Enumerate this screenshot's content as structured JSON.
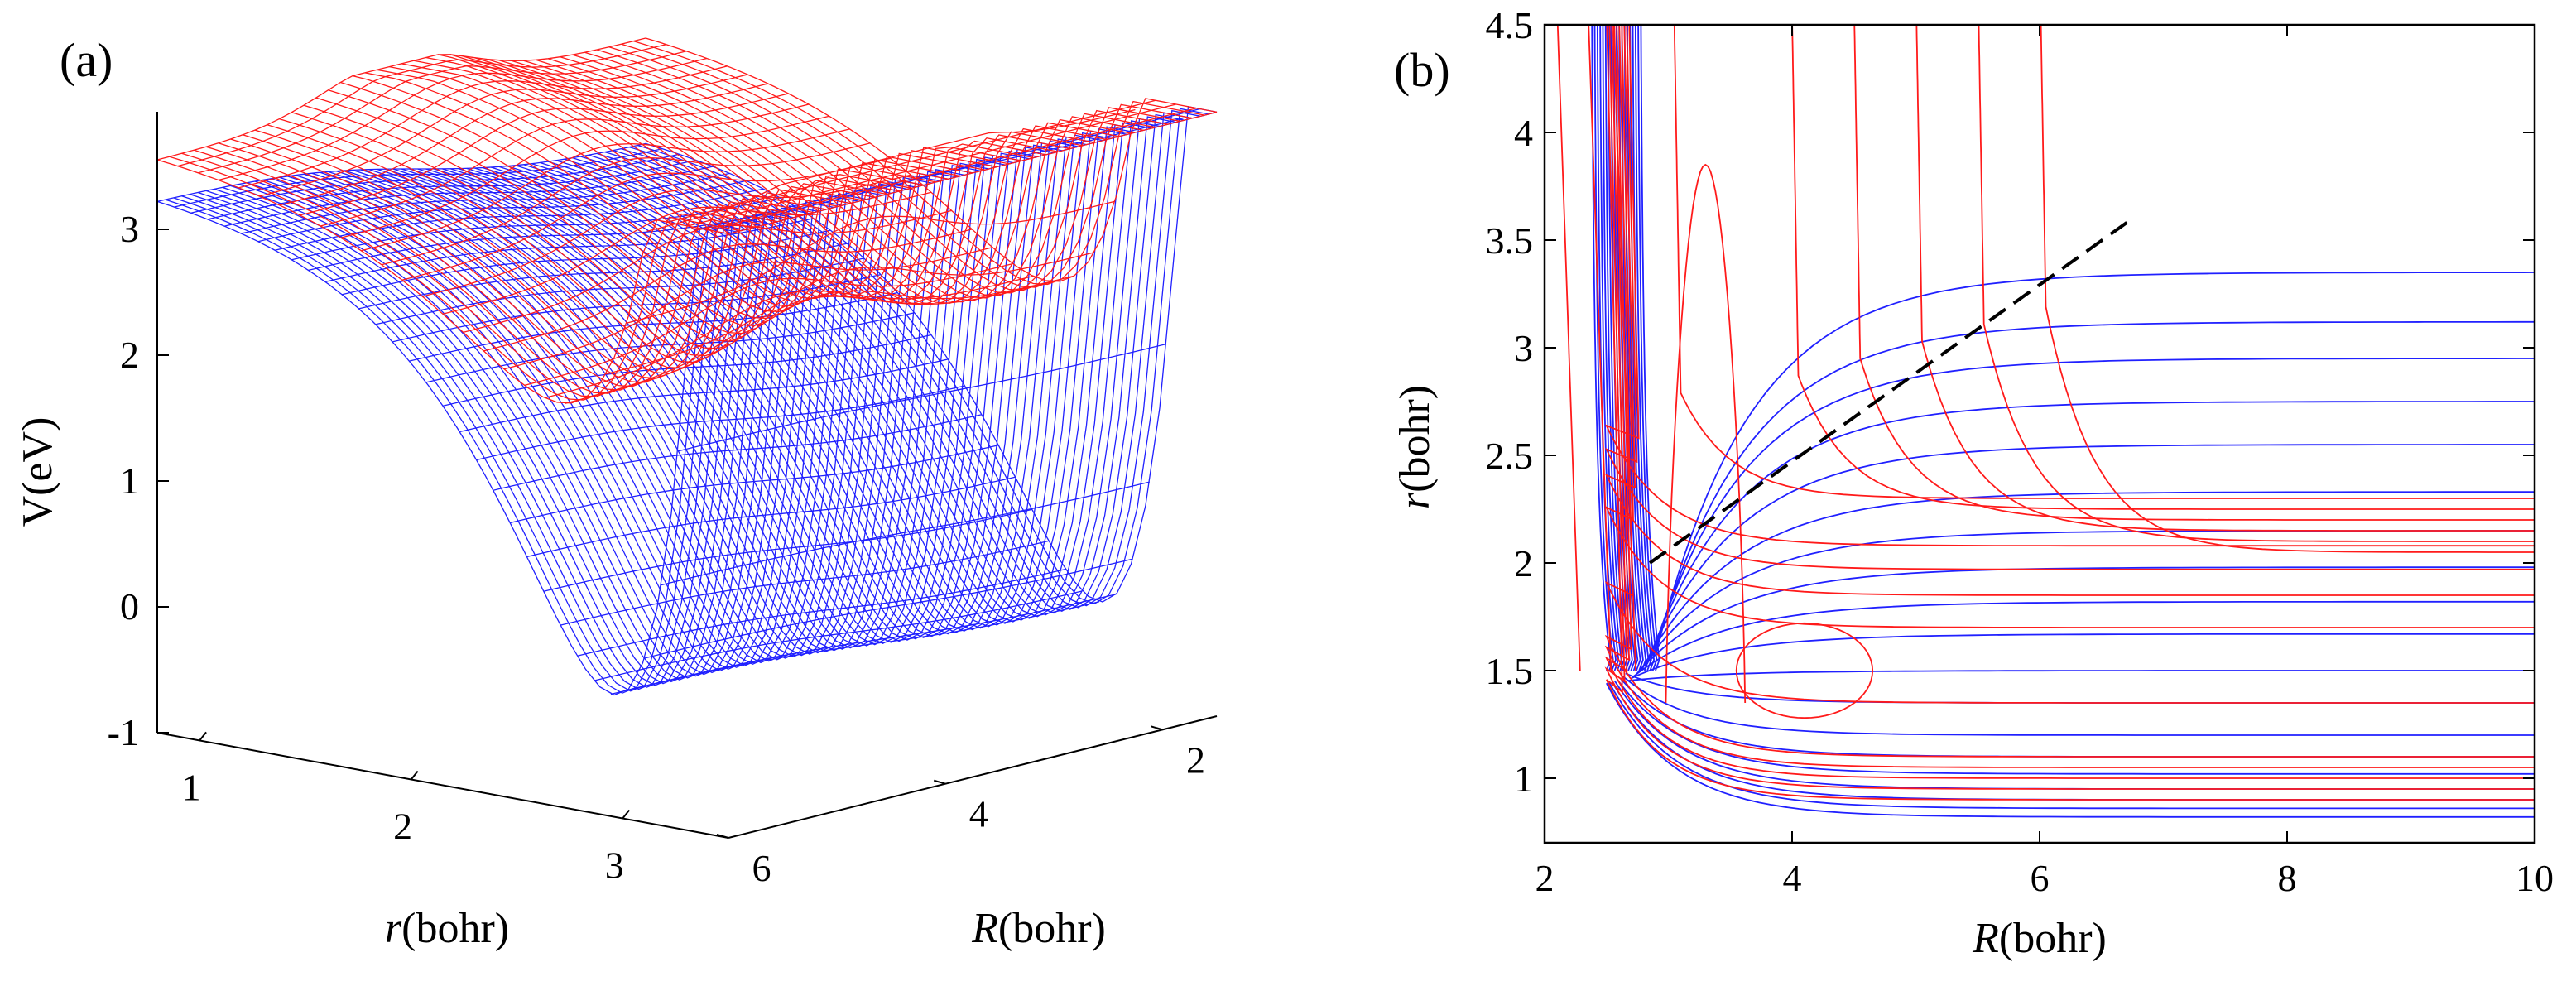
{
  "colors": {
    "blue": "#2020ff",
    "red": "#ff1a1a",
    "dashed": "#000000",
    "axis": "#000000"
  },
  "chart_data": [
    {
      "type": "surface",
      "panel_label": "(a)",
      "zlabel": "V(eV)",
      "xlabel_italic": "r",
      "xlabel_unit": "(bohr)",
      "ylabel_italic": "R",
      "ylabel_unit": "(bohr)",
      "r_range": [
        0.8,
        3.5
      ],
      "R_range": [
        1.5,
        6
      ],
      "z_range": [
        -1,
        3.8
      ],
      "z_ticks": [
        "-1",
        "0",
        "1",
        "2",
        "3"
      ],
      "r_ticks": [
        "1",
        "2",
        "3"
      ],
      "R_ticks": [
        "2",
        "4",
        "6"
      ],
      "series": [
        {
          "name": "lower surface",
          "color": "blue"
        },
        {
          "name": "upper surface",
          "color": "red"
        }
      ]
    },
    {
      "type": "contour",
      "panel_label": "(b)",
      "xlabel_italic": "R",
      "xlabel_unit": "(bohr)",
      "ylabel_italic": "r",
      "ylabel_unit": "(bohr)",
      "xlim": [
        2,
        10
      ],
      "ylim": [
        0.7,
        4.5
      ],
      "x_ticks": [
        "2",
        "4",
        "6",
        "8",
        "10"
      ],
      "y_ticks": [
        "1",
        "1.5",
        "2",
        "2.5",
        "3",
        "3.5",
        "4",
        "4.5"
      ],
      "blue_contour_levels_r_asymptote": [
        0.82,
        0.86,
        0.9,
        0.95,
        1.02,
        1.1,
        1.2,
        1.35,
        1.5,
        1.67,
        1.82,
        1.98,
        2.15,
        2.33,
        2.55,
        2.75,
        2.95,
        3.12,
        3.35
      ],
      "red_asymptotes_r": [
        0.9,
        0.95,
        1.0,
        1.05,
        1.1,
        1.35,
        1.7,
        1.85,
        1.97,
        2.08
      ],
      "red_vertical_R": [
        2.1,
        2.35,
        2.55,
        3.1,
        4.05,
        4.55,
        5.05,
        5.55,
        6.05
      ],
      "dashed_line": {
        "x": [
          2.85,
          6.75
        ],
        "y": [
          2.0,
          3.6
        ]
      }
    }
  ]
}
